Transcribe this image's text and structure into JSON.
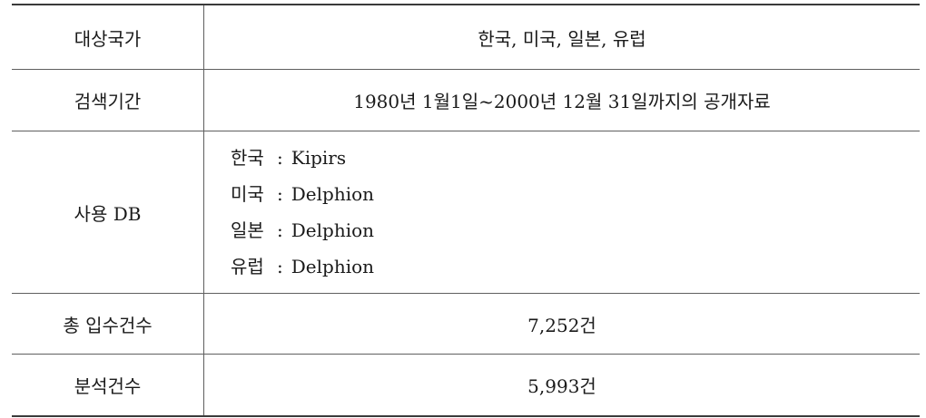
{
  "rows": [
    {
      "label": "대상국가",
      "value": "한국, 미국, 일본, 유럽"
    },
    {
      "label": "검색기간",
      "value": "1980년 1월1일~2000년 12월 31일까지의 공개자료"
    },
    {
      "label": "사용 DB",
      "db": [
        {
          "country": "한국",
          "sep": ":",
          "name": "Kipirs"
        },
        {
          "country": "미국",
          "sep": ":",
          "name": "Delphion"
        },
        {
          "country": "일본",
          "sep": ":",
          "name": "Delphion"
        },
        {
          "country": "유럽",
          "sep": ":",
          "name": "Delphion"
        }
      ]
    },
    {
      "label": "총 입수건수",
      "value": "7,252건"
    },
    {
      "label": "분석건수",
      "value": "5,993건"
    }
  ]
}
